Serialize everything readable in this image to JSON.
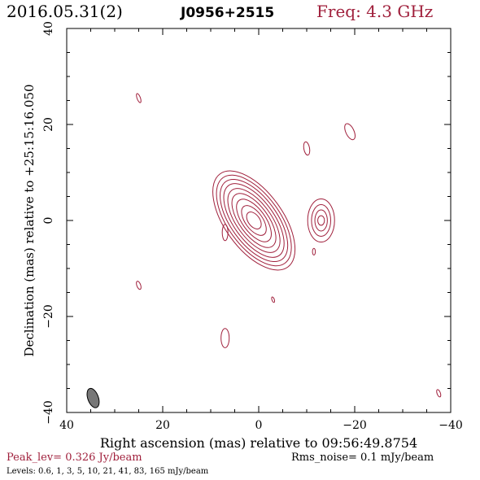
{
  "header": {
    "date": "2016.05.31(2)",
    "source": "J0956+2515",
    "freq": "Freq: 4.3 GHz"
  },
  "footer": {
    "peak": "Peak_lev=  0.326 Jy/beam",
    "rms": "Rms_noise=  0.1 mJy/beam",
    "levels": "Levels: 0.6,   1,   3,   5,  10,  21,  41,  83, 165 mJy/beam"
  },
  "colors": {
    "contour": "#a0203c",
    "axes": "#000000",
    "beam_fill": "#777777"
  },
  "chart_data": {
    "type": "contour",
    "xlabel": "Right ascension (mas) relative to 09:56:49.8754",
    "ylabel": "Declination (mas) relative to +25:15:16.050",
    "xlim": [
      40,
      -40
    ],
    "ylim": [
      -40,
      40
    ],
    "x_ticks": [
      40,
      20,
      0,
      -20,
      -40
    ],
    "y_ticks": [
      -40,
      -20,
      0,
      20,
      40
    ],
    "x_tick_labels": [
      "40",
      "20",
      "0",
      "−20",
      "−40"
    ],
    "y_tick_labels": [
      "−40",
      "−20",
      "0",
      "20",
      "40"
    ],
    "contour_levels_mJy": [
      0.6,
      1,
      3,
      5,
      10,
      21,
      41,
      83,
      165
    ],
    "core": {
      "x": 1.0,
      "y": 0.0,
      "pa_deg": -36,
      "rings": [
        {
          "a": 12.0,
          "b": 6.0
        },
        {
          "a": 11.0,
          "b": 5.4
        },
        {
          "a": 10.0,
          "b": 4.8
        },
        {
          "a": 9.0,
          "b": 4.2
        },
        {
          "a": 7.8,
          "b": 3.6
        },
        {
          "a": 6.6,
          "b": 3.0
        },
        {
          "a": 5.2,
          "b": 2.4
        },
        {
          "a": 3.6,
          "b": 1.8
        },
        {
          "a": 2.0,
          "b": 1.2
        }
      ]
    },
    "jet_component": {
      "x": -13.0,
      "y": 0.0,
      "pa_deg": 0,
      "rings": [
        {
          "a": 4.5,
          "b": 2.8
        },
        {
          "a": 3.3,
          "b": 2.0
        },
        {
          "a": 2.2,
          "b": 1.3
        },
        {
          "a": 1.0,
          "b": 0.7
        }
      ]
    },
    "noise_islands": [
      {
        "x": 25.0,
        "y": 25.5,
        "a": 1.0,
        "b": 0.35,
        "pa_deg": -20
      },
      {
        "x": 7.0,
        "y": -2.5,
        "a": 1.7,
        "b": 0.6,
        "pa_deg": 0
      },
      {
        "x": -10.0,
        "y": 15.0,
        "a": 1.4,
        "b": 0.6,
        "pa_deg": -10
      },
      {
        "x": -19.0,
        "y": 18.5,
        "a": 1.8,
        "b": 0.85,
        "pa_deg": -25
      },
      {
        "x": 25.0,
        "y": -13.5,
        "a": 0.9,
        "b": 0.4,
        "pa_deg": -20
      },
      {
        "x": -11.5,
        "y": -6.5,
        "a": 0.7,
        "b": 0.3,
        "pa_deg": 0
      },
      {
        "x": -3.0,
        "y": -16.5,
        "a": 0.6,
        "b": 0.25,
        "pa_deg": -20
      },
      {
        "x": 7.0,
        "y": -24.5,
        "a": 2.0,
        "b": 0.85,
        "pa_deg": 0
      },
      {
        "x": -37.5,
        "y": -36.0,
        "a": 0.8,
        "b": 0.35,
        "pa_deg": -20
      }
    ],
    "beam": {
      "x": 34.5,
      "y": -37.0,
      "a": 2.1,
      "b": 1.1,
      "pa_deg": -20
    }
  }
}
